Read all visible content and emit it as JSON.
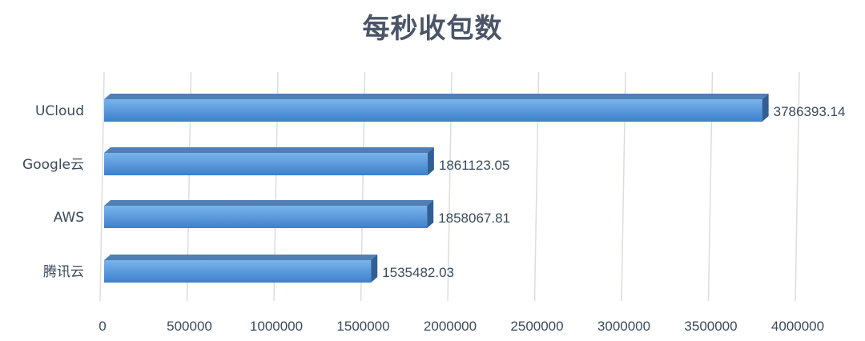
{
  "chart_data": {
    "type": "bar",
    "orientation": "horizontal",
    "title": "每秒收包数",
    "xlabel": "",
    "ylabel": "",
    "categories": [
      "UCloud",
      "Google云",
      "AWS",
      "腾讯云"
    ],
    "values": [
      3786393.14,
      1861123.05,
      1858067.81,
      1535482.03
    ],
    "value_labels": [
      "3786393.14",
      "1861123.05",
      "1858067.81",
      "1535482.03"
    ],
    "xlim": [
      0,
      4000000
    ],
    "x_ticks": [
      0,
      500000,
      1000000,
      1500000,
      2000000,
      2500000,
      3000000,
      3500000,
      4000000
    ],
    "x_tick_labels": [
      "0",
      "500000",
      "1000000",
      "1500000",
      "2000000",
      "2500000",
      "3000000",
      "3500000",
      "4000000"
    ],
    "grid": true,
    "legend": "none",
    "colors": {
      "bar_front_top": "#7ab4ec",
      "bar_front_bottom": "#3d7fcc",
      "bar_top": "#4f7fb3",
      "bar_side": "#2f5f96",
      "grid": "#d9dde3",
      "text": "#3b4a5c"
    }
  }
}
